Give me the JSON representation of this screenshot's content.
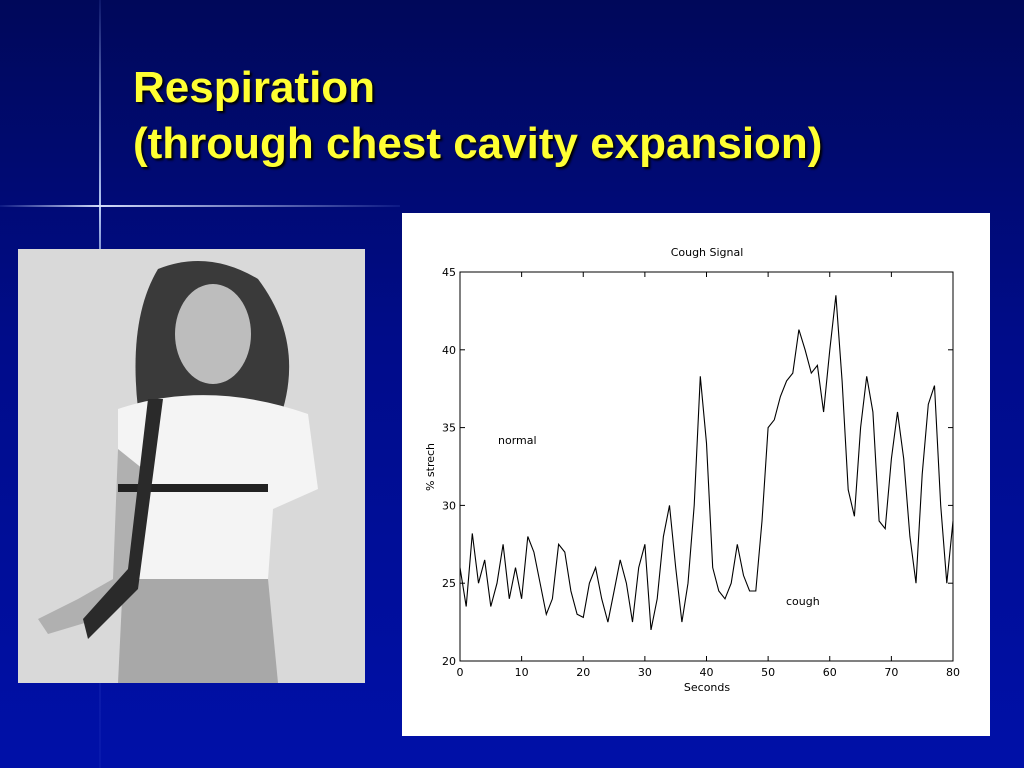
{
  "slide": {
    "title_lines": [
      "Respiration",
      "(through chest cavity expansion)"
    ]
  },
  "chart_data": {
    "type": "line",
    "title": "Cough Signal",
    "x_label": "Seconds",
    "y_label": "% strech",
    "x": [
      0,
      1,
      2,
      3,
      4,
      5,
      6,
      7,
      8,
      9,
      10,
      11,
      12,
      13,
      14,
      15,
      16,
      17,
      18,
      19,
      20,
      21,
      22,
      23,
      24,
      25,
      26,
      27,
      28,
      29,
      30,
      31,
      32,
      33,
      34,
      35,
      36,
      37,
      38,
      39,
      40,
      41,
      42,
      43,
      44,
      45,
      46,
      47,
      48,
      49,
      50,
      51,
      52,
      53,
      54,
      55,
      56,
      57,
      58,
      59,
      60,
      61,
      62,
      63,
      64,
      65,
      66,
      67,
      68,
      69,
      70,
      71,
      72,
      73,
      74,
      75,
      76,
      77,
      78,
      79,
      80
    ],
    "values": [
      26,
      23.5,
      28.2,
      25,
      26.5,
      23.5,
      25,
      27.5,
      24,
      26,
      24,
      28,
      27,
      25,
      23,
      24,
      27.5,
      27,
      24.5,
      23,
      22.8,
      25,
      26,
      24,
      22.5,
      24.5,
      26.5,
      25,
      22.5,
      26,
      27.5,
      22,
      24,
      28,
      30,
      26,
      22.5,
      25,
      30,
      38.3,
      34,
      26,
      24.5,
      24,
      25,
      27.5,
      25.5,
      24.5,
      24.5,
      29,
      35,
      35.5,
      37,
      38,
      38.5,
      41.3,
      40,
      38.5,
      39,
      36,
      40,
      43.5,
      38,
      31,
      29.3,
      35,
      38.3,
      36,
      29,
      28.5,
      33,
      36,
      33,
      28,
      25,
      32,
      36.5,
      37.7,
      30,
      25,
      29
    ],
    "color": "#000000",
    "xlim": [
      0,
      80
    ],
    "xticks": [
      0,
      10,
      20,
      30,
      40,
      50,
      60,
      70,
      80
    ],
    "ylim": [
      20,
      45
    ],
    "yticks": [
      20,
      25,
      30,
      35,
      40,
      45
    ],
    "annotations": [
      "normal",
      "cough"
    ]
  }
}
